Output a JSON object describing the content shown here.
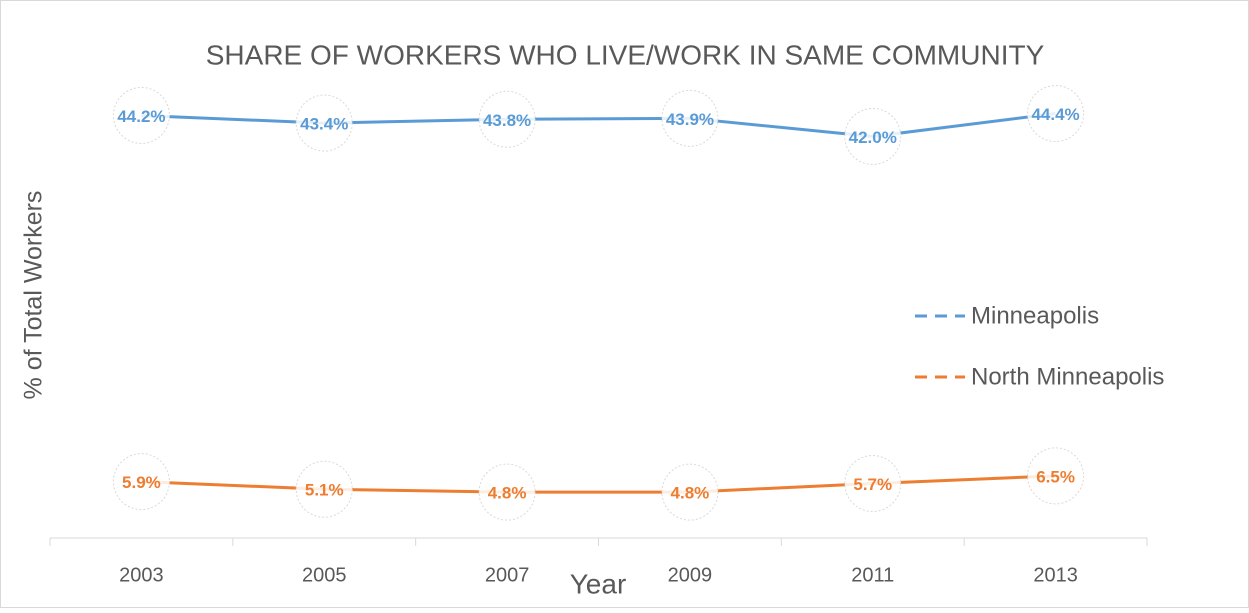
{
  "chart_data": {
    "type": "line",
    "title": "SHARE OF WORKERS WHO LIVE/WORK IN SAME COMMUNITY",
    "x_label": "Year",
    "y_label": "% of Total Workers",
    "categories": [
      "2003",
      "2005",
      "2007",
      "2009",
      "2011",
      "2013"
    ],
    "series": [
      {
        "name": "Minneapolis",
        "color": "#5b9bd5",
        "values": [
          44.2,
          43.4,
          43.8,
          43.9,
          42.0,
          44.4
        ],
        "value_labels": [
          "44.2%",
          "43.4%",
          "43.8%",
          "43.9%",
          "42.0%",
          "44.4%"
        ]
      },
      {
        "name": "North Minneapolis",
        "color": "#ed7d31",
        "values": [
          5.9,
          5.1,
          4.8,
          4.8,
          5.7,
          6.5
        ],
        "value_labels": [
          "5.9%",
          "5.1%",
          "4.8%",
          "4.8%",
          "5.7%",
          "6.5%"
        ]
      }
    ],
    "ylim": [
      0,
      50
    ],
    "legend": "right"
  }
}
